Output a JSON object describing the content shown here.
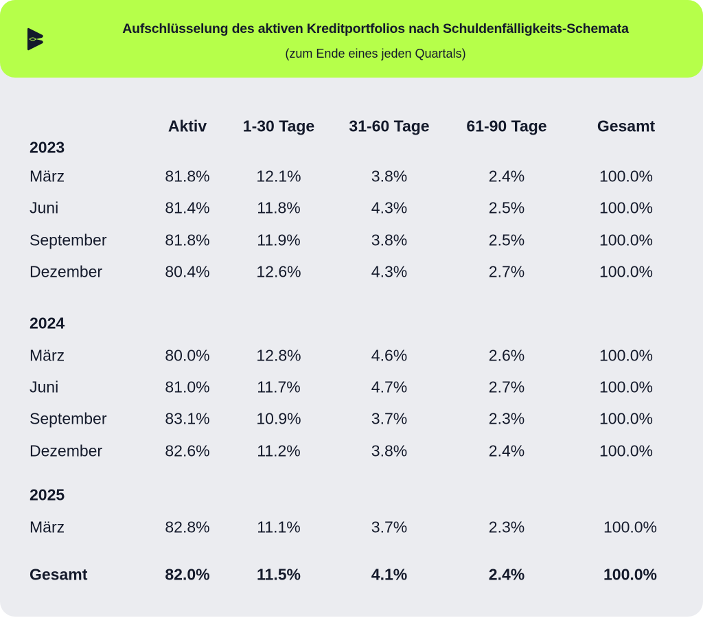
{
  "header": {
    "title": "Aufschlüsselung des aktiven Kreditportfolios nach Schuldenfälligkeits-Schemata",
    "subtitle": "(zum Ende eines jeden Quartals)",
    "logo_icon": "brand-logo-icon",
    "accent_color": "#b6ff4a"
  },
  "chart_data": {
    "type": "table",
    "title": "Aufschlüsselung des aktiven Kreditportfolios nach Schuldenfälligkeits-Schemata",
    "subtitle": "(zum Ende eines jeden Quartals)",
    "columns": [
      "Aktiv",
      "1-30 Tage",
      "31-60 Tage",
      "61-90 Tage",
      "Gesamt"
    ],
    "groups": [
      {
        "year": "2023",
        "rows": [
          {
            "label": "März",
            "values": [
              "81.8%",
              "12.1%",
              "3.8%",
              "2.4%",
              "100.0%"
            ]
          },
          {
            "label": "Juni",
            "values": [
              "81.4%",
              "11.8%",
              "4.3%",
              "2.5%",
              "100.0%"
            ]
          },
          {
            "label": "September",
            "values": [
              "81.8%",
              "11.9%",
              "3.8%",
              "2.5%",
              "100.0%"
            ]
          },
          {
            "label": "Dezember",
            "values": [
              "80.4%",
              "12.6%",
              "4.3%",
              "2.7%",
              "100.0%"
            ]
          }
        ]
      },
      {
        "year": "2024",
        "rows": [
          {
            "label": "März",
            "values": [
              "80.0%",
              "12.8%",
              "4.6%",
              "2.6%",
              "100.0%"
            ]
          },
          {
            "label": "Juni",
            "values": [
              "81.0%",
              "11.7%",
              "4.7%",
              "2.7%",
              "100.0%"
            ]
          },
          {
            "label": "September",
            "values": [
              "83.1%",
              "10.9%",
              "3.7%",
              "2.3%",
              "100.0%"
            ]
          },
          {
            "label": "Dezember",
            "values": [
              "82.6%",
              "11.2%",
              "3.8%",
              "2.4%",
              "100.0%"
            ]
          }
        ]
      },
      {
        "year": "2025",
        "rows": [
          {
            "label": "März",
            "values": [
              "82.8%",
              "11.1%",
              "3.7%",
              "2.3%",
              "100.0%"
            ]
          }
        ]
      }
    ],
    "total": {
      "label": "Gesamt",
      "values": [
        "82.0%",
        "11.5%",
        "4.1%",
        "2.4%",
        "100.0%"
      ]
    }
  }
}
